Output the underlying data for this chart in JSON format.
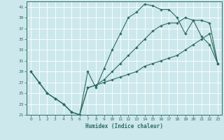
{
  "xlabel": "Humidex (Indice chaleur)",
  "background_color": "#cce8ec",
  "line_color": "#2e6b60",
  "grid_color": "#ffffff",
  "xlim": [
    -0.5,
    23.5
  ],
  "ylim": [
    21,
    42
  ],
  "yticks": [
    21,
    23,
    25,
    27,
    29,
    31,
    33,
    35,
    37,
    39,
    41
  ],
  "xticks": [
    0,
    1,
    2,
    3,
    4,
    5,
    6,
    7,
    8,
    9,
    10,
    11,
    12,
    13,
    14,
    15,
    16,
    17,
    18,
    19,
    20,
    21,
    22,
    23
  ],
  "line1_x": [
    0,
    1,
    2,
    3,
    4,
    5,
    6,
    7,
    8,
    9,
    10,
    11,
    12,
    13,
    14,
    15,
    16,
    17,
    18,
    19,
    20,
    21,
    22,
    23
  ],
  "line1_y": [
    29,
    27,
    25,
    24,
    23,
    21.5,
    21,
    29,
    26,
    29.5,
    33,
    36,
    39,
    40,
    41.5,
    41.2,
    40.5,
    40.5,
    39,
    36,
    38.5,
    35.5,
    34,
    30.5
  ],
  "line2_x": [
    0,
    1,
    2,
    3,
    4,
    5,
    6,
    7,
    8,
    9,
    10,
    11,
    12,
    13,
    14,
    15,
    16,
    17,
    18,
    19,
    20,
    21,
    22,
    23
  ],
  "line2_y": [
    29,
    27,
    25,
    24,
    23,
    21.5,
    21,
    26,
    26.5,
    27.5,
    29,
    30.5,
    32,
    33.5,
    35,
    36.5,
    37.5,
    38,
    38,
    39,
    38.5,
    38.5,
    38,
    30.5
  ],
  "line3_x": [
    0,
    1,
    2,
    3,
    4,
    5,
    6,
    7,
    8,
    9,
    10,
    11,
    12,
    13,
    14,
    15,
    16,
    17,
    18,
    19,
    20,
    21,
    22,
    23
  ],
  "line3_y": [
    29,
    27,
    25,
    24,
    23,
    21.5,
    21,
    26,
    26.5,
    27,
    27.5,
    28,
    28.5,
    29,
    30,
    30.5,
    31,
    31.5,
    32,
    33,
    34,
    35,
    36,
    30.5
  ],
  "marker_x1": [
    0,
    1,
    2,
    3,
    4,
    5,
    6,
    7,
    8,
    9,
    10,
    11,
    12,
    13,
    14,
    15,
    16,
    17,
    18,
    19,
    20,
    21,
    22,
    23
  ],
  "marker_y1": [
    29,
    27,
    25,
    24,
    23,
    21.5,
    21,
    29,
    26,
    29.5,
    33,
    36,
    39,
    40,
    41.5,
    41.2,
    40.5,
    40.5,
    39,
    36,
    38.5,
    35.5,
    34,
    30.5
  ]
}
